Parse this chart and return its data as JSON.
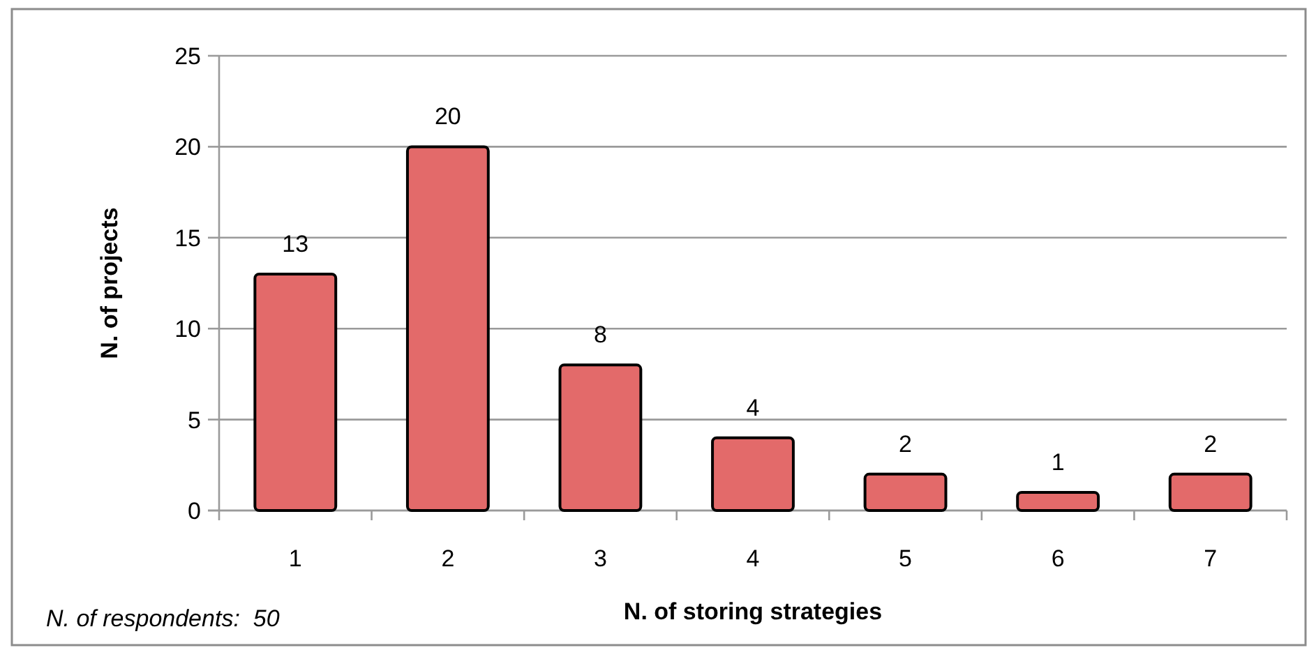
{
  "chart_data": {
    "type": "bar",
    "categories": [
      "1",
      "2",
      "3",
      "4",
      "5",
      "6",
      "7"
    ],
    "values": [
      13,
      20,
      8,
      4,
      2,
      1,
      2
    ],
    "color": "#e36a6a",
    "xlabel": "N. of storing strategies",
    "ylabel": "N. of projects",
    "annotations": [
      "N. of respondents:  50"
    ],
    "ylim": [
      0,
      25
    ],
    "yticks": [
      0,
      5,
      10,
      15,
      20,
      25
    ],
    "grid": "y",
    "data_labels": true
  }
}
